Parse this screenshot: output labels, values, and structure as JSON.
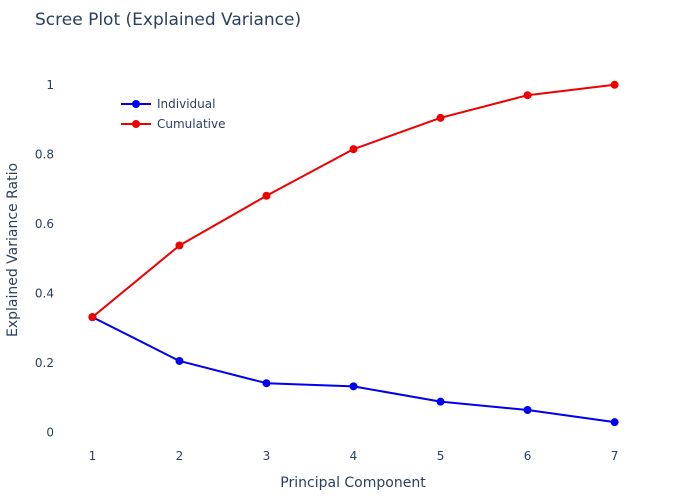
{
  "chart_data": {
    "type": "line",
    "title": "Scree Plot (Explained Variance)",
    "xlabel": "Principal Component",
    "ylabel": "Explained Variance Ratio",
    "x": [
      1,
      2,
      3,
      4,
      5,
      6,
      7
    ],
    "xlim": [
      0.8,
      7.2
    ],
    "ylim": [
      -0.05,
      1.1
    ],
    "yticks": [
      0,
      0.2,
      0.4,
      0.6,
      0.8,
      1
    ],
    "grid": false,
    "legend_position": "top-left",
    "series": [
      {
        "name": "Individual",
        "color": "#0000ee",
        "values": [
          0.332,
          0.206,
          0.142,
          0.133,
          0.089,
          0.065,
          0.03
        ]
      },
      {
        "name": "Cumulative",
        "color": "#ee0000",
        "values": [
          0.332,
          0.538,
          0.681,
          0.815,
          0.905,
          0.97,
          1.0
        ]
      }
    ]
  }
}
